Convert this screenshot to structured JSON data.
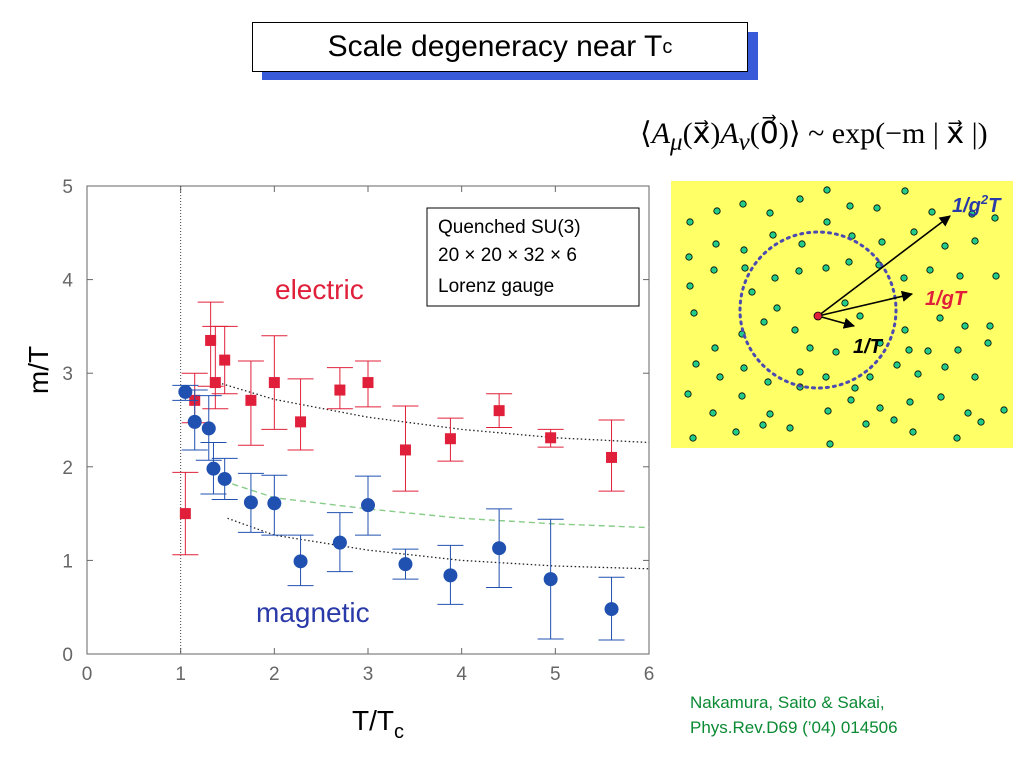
{
  "title": {
    "main": "Scale degeneracy near T",
    "sub": "c"
  },
  "formula": {
    "lhs_open": "⟨",
    "A1": "A",
    "mu": "μ",
    "x1": "(x⃗)",
    "A2": "A",
    "nu": "ν",
    "zero": "(0⃗)",
    "lhs_close": "⟩",
    "rhs": " ~ exp(−m | x⃗ |)"
  },
  "credit": {
    "line1": "Nakamura, Saito & Sakai,",
    "line2": "Phys.Rev.D69 (’04)  014506"
  },
  "colors": {
    "electric": "#e0203a",
    "magnetic": "#2050b0",
    "inset_bg": "#ffff66",
    "dot": "#22cc88",
    "circle": "#4a4ab0",
    "credit": "#0a8a33",
    "fit_green": "#88cc88"
  },
  "chart_data": {
    "type": "scatter",
    "xlabel": "T/T",
    "xlabel_sub": "c",
    "ylabel": "m/T",
    "xlim": [
      0,
      6
    ],
    "ylim": [
      0,
      5
    ],
    "xticks": [
      0,
      1,
      2,
      3,
      4,
      5,
      6
    ],
    "yticks": [
      0,
      1,
      2,
      3,
      4,
      5
    ],
    "vline_x": 1,
    "annotation_box": [
      "Quenched SU(3)",
      "20 × 20 × 32 × 6",
      "Lorenz gauge"
    ],
    "series": [
      {
        "name": "electric",
        "marker": "square",
        "points": [
          {
            "x": 1.05,
            "y": 1.5,
            "lo": 1.06,
            "hi": 1.94
          },
          {
            "x": 1.15,
            "y": 2.71,
            "lo": 2.47,
            "hi": 3.0
          },
          {
            "x": 1.32,
            "y": 3.35,
            "lo": 2.86,
            "hi": 3.76
          },
          {
            "x": 1.37,
            "y": 2.9,
            "lo": 2.62,
            "hi": 3.5
          },
          {
            "x": 1.47,
            "y": 3.14,
            "lo": 2.78,
            "hi": 3.5
          },
          {
            "x": 1.75,
            "y": 2.71,
            "lo": 2.23,
            "hi": 3.13
          },
          {
            "x": 2.0,
            "y": 2.9,
            "lo": 2.4,
            "hi": 3.4
          },
          {
            "x": 2.28,
            "y": 2.48,
            "lo": 2.18,
            "hi": 2.94
          },
          {
            "x": 2.7,
            "y": 2.82,
            "lo": 2.62,
            "hi": 3.06
          },
          {
            "x": 3.0,
            "y": 2.9,
            "lo": 2.64,
            "hi": 3.13
          },
          {
            "x": 3.4,
            "y": 2.18,
            "lo": 1.74,
            "hi": 2.65
          },
          {
            "x": 3.88,
            "y": 2.3,
            "lo": 2.06,
            "hi": 2.52
          },
          {
            "x": 4.4,
            "y": 2.6,
            "lo": 2.42,
            "hi": 2.78
          },
          {
            "x": 4.95,
            "y": 2.31,
            "lo": 2.21,
            "hi": 2.4
          },
          {
            "x": 5.6,
            "y": 2.1,
            "lo": 1.74,
            "hi": 2.5
          }
        ]
      },
      {
        "name": "magnetic",
        "marker": "circle",
        "points": [
          {
            "x": 1.05,
            "y": 2.8,
            "lo": 2.71,
            "hi": 2.87
          },
          {
            "x": 1.15,
            "y": 2.48,
            "lo": 2.18,
            "hi": 2.82
          },
          {
            "x": 1.3,
            "y": 2.41,
            "lo": 2.07,
            "hi": 2.76
          },
          {
            "x": 1.35,
            "y": 1.98,
            "lo": 1.71,
            "hi": 2.26
          },
          {
            "x": 1.47,
            "y": 1.87,
            "lo": 1.65,
            "hi": 2.09
          },
          {
            "x": 1.75,
            "y": 1.62,
            "lo": 1.3,
            "hi": 1.93
          },
          {
            "x": 2.0,
            "y": 1.61,
            "lo": 1.27,
            "hi": 1.91
          },
          {
            "x": 2.28,
            "y": 0.99,
            "lo": 0.73,
            "hi": 1.27
          },
          {
            "x": 2.7,
            "y": 1.19,
            "lo": 0.88,
            "hi": 1.51
          },
          {
            "x": 3.0,
            "y": 1.59,
            "lo": 1.27,
            "hi": 1.9
          },
          {
            "x": 3.4,
            "y": 0.96,
            "lo": 0.8,
            "hi": 1.12
          },
          {
            "x": 3.88,
            "y": 0.84,
            "lo": 0.53,
            "hi": 1.16
          },
          {
            "x": 4.4,
            "y": 1.13,
            "lo": 0.71,
            "hi": 1.55
          },
          {
            "x": 4.95,
            "y": 0.8,
            "lo": 0.16,
            "hi": 1.44
          },
          {
            "x": 5.6,
            "y": 0.48,
            "lo": 0.15,
            "hi": 0.82
          }
        ]
      }
    ],
    "fit_curves": [
      {
        "style": "black-dotted",
        "points": [
          [
            1.4,
            2.9
          ],
          [
            2,
            2.72
          ],
          [
            3,
            2.53
          ],
          [
            4,
            2.4
          ],
          [
            5,
            2.31
          ],
          [
            6,
            2.26
          ]
        ]
      },
      {
        "style": "green-dashed",
        "points": [
          [
            1.45,
            1.85
          ],
          [
            2,
            1.67
          ],
          [
            3,
            1.55
          ],
          [
            4,
            1.45
          ],
          [
            5,
            1.39
          ],
          [
            6,
            1.35
          ]
        ]
      },
      {
        "style": "black-dotted",
        "points": [
          [
            1.5,
            1.45
          ],
          [
            2,
            1.27
          ],
          [
            3,
            1.11
          ],
          [
            4,
            1.0
          ],
          [
            5,
            0.94
          ],
          [
            6,
            0.91
          ]
        ]
      }
    ],
    "legend_labels": {
      "electric": "electric",
      "magnetic": "magnetic"
    }
  },
  "inset": {
    "labels": {
      "g2T": "1/g",
      "g2T_sup": "2",
      "g2T_end": "T",
      "gT": "1/gT",
      "T": "1/T"
    }
  }
}
